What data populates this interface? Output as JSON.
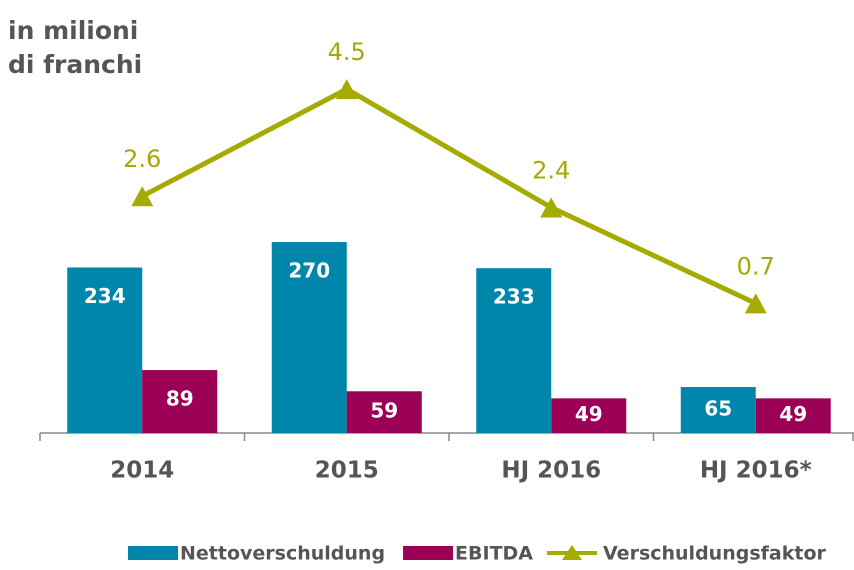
{
  "chart_data": {
    "type": "bar",
    "title": "in milioni di franchi",
    "categories": [
      "2014",
      "2015",
      "HJ 2016",
      "HJ 2016*"
    ],
    "series": [
      {
        "name": "Nettoverschuldung",
        "color": "#0086ab",
        "type": "bar",
        "values": [
          234,
          270,
          233,
          65
        ]
      },
      {
        "name": "EBITDA",
        "color": "#9b0056",
        "type": "bar",
        "values": [
          89,
          59,
          49,
          49
        ]
      },
      {
        "name": "Verschuldungsfaktor",
        "color": "#a5ab00",
        "type": "line",
        "axis": "y2",
        "values": [
          2.6,
          4.5,
          2.4,
          0.7
        ]
      }
    ],
    "ylim": [
      0,
      550
    ],
    "y2lim": [
      -1.6,
      5.3
    ],
    "legend": "bottom"
  }
}
